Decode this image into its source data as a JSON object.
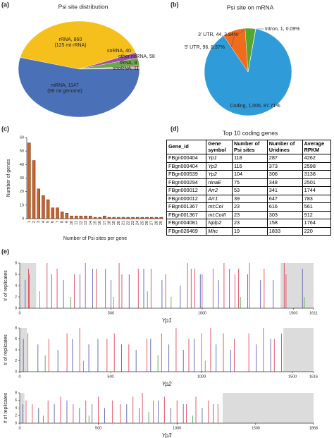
{
  "panels": [
    "(a)",
    "(b)",
    "(c)",
    "(d)",
    "(e)"
  ],
  "chart_data": [
    {
      "type": "pie",
      "title": "Psi site distribution",
      "values": [
        860,
        40,
        58,
        8,
        11,
        1147
      ],
      "value_labels": [
        "rRNA, 860",
        "snRNA, 40",
        "other ncRNA, 58",
        "tRNA, 8",
        "snoRNA, 11",
        "mRNA, 1147"
      ],
      "annotations": [
        "(125 mt rRNA)",
        "(99 mt genome)"
      ],
      "colors": [
        "#f6c01c",
        "#9b4fa6",
        "#6aa84f",
        "#d9534f",
        "#a6a6a6",
        "#4a70b7"
      ]
    },
    {
      "type": "pie",
      "title": "Psi site on mRNA",
      "values": [
        1006,
        96,
        44,
        1
      ],
      "value_labels": [
        "Coding, 1,006, 87.71%",
        "5' UTR, 96, 8.37%",
        "3' UTR, 44, 3.84%",
        "Intron, 1, 0.09%"
      ],
      "colors": [
        "#2f9bd8",
        "#f26a1b",
        "#55a630",
        "#999999"
      ]
    },
    {
      "type": "bar",
      "xlabel": "Number of Psi sites per gene",
      "ylabel": "Number of genes",
      "categories": [
        "1",
        "2",
        "3",
        "4",
        "5",
        "6",
        "7",
        "8",
        "9",
        "10",
        "11",
        "12",
        "13",
        "14",
        "15",
        "16",
        "17",
        "18",
        "19",
        "20",
        "21",
        "22",
        "23",
        "24",
        "25",
        "26",
        "27",
        "28",
        "29"
      ],
      "values": [
        56,
        43,
        22,
        17,
        14,
        8,
        8,
        5,
        4,
        2,
        2,
        2,
        2,
        2,
        1,
        1,
        2,
        1,
        1,
        1,
        1,
        1,
        1,
        1,
        1,
        1,
        1,
        1,
        1
      ],
      "color": "#c8642c",
      "ylim": [
        0,
        60
      ],
      "yticks": [
        0,
        10,
        20,
        30,
        40,
        50,
        60
      ]
    },
    {
      "type": "spike",
      "xlabel": "Yp1",
      "ylabel": "# of replicates",
      "xlim": [
        0,
        1611
      ],
      "xticks": [
        0,
        500,
        1000,
        1500,
        1611
      ],
      "ylim": [
        0,
        8
      ],
      "yticks": [
        0,
        2,
        4,
        6,
        8
      ],
      "shaded": [
        [
          0,
          90
        ],
        [
          1430,
          1611
        ]
      ],
      "series": [
        {
          "color": "#e0475a",
          "x": [
            48,
            52,
            150,
            205,
            300,
            360,
            420,
            470,
            545,
            560,
            650,
            720,
            800,
            920,
            940,
            960,
            1000,
            1060,
            1120,
            1180,
            1200,
            1260,
            1340,
            1450,
            1460
          ],
          "values": [
            7,
            6,
            8,
            7,
            6,
            8,
            7,
            7,
            8,
            6,
            7,
            7,
            6,
            8,
            7,
            7,
            6,
            7,
            8,
            6,
            7,
            8,
            7,
            8,
            6
          ]
        },
        {
          "color": "#5a5fb8",
          "x": [
            30,
            175,
            240,
            330,
            400,
            500,
            600,
            680,
            780,
            880,
            990,
            1090,
            1150,
            1250,
            1320,
            1390,
            1550
          ],
          "values": [
            5,
            6,
            5,
            6,
            7,
            5,
            6,
            7,
            5,
            4,
            6,
            5,
            7,
            6,
            5,
            5,
            7
          ]
        },
        {
          "color": "#4caf50",
          "x": [
            110,
            280,
            515,
            700,
            830,
            1210,
            1560
          ],
          "values": [
            3,
            2,
            2,
            3,
            2,
            2,
            2
          ]
        }
      ]
    },
    {
      "type": "spike",
      "xlabel": "Yp2",
      "ylabel": "# of replicates",
      "xlim": [
        0,
        1616
      ],
      "xticks": [
        0,
        500,
        1000,
        1500,
        1616
      ],
      "ylim": [
        0,
        8
      ],
      "yticks": [
        0,
        2,
        4,
        6,
        8
      ],
      "shaded": [
        [
          0,
          40
        ],
        [
          1450,
          1616
        ]
      ],
      "series": [
        {
          "color": "#e0475a",
          "x": [
            45,
            160,
            260,
            330,
            480,
            520,
            600,
            700,
            780,
            860,
            930,
            1000,
            1050,
            1120,
            1180,
            1260,
            1340,
            1400,
            1440
          ],
          "values": [
            7,
            6,
            7,
            8,
            6,
            7,
            5,
            6,
            7,
            8,
            6,
            7,
            8,
            7,
            6,
            7,
            8,
            6,
            7
          ]
        },
        {
          "color": "#5a5fb8",
          "x": [
            20,
            100,
            210,
            290,
            380,
            430,
            560,
            640,
            720,
            820,
            900,
            960,
            1080,
            1160,
            1300,
            1380
          ],
          "values": [
            6,
            5,
            4,
            6,
            5,
            6,
            5,
            4,
            6,
            5,
            4,
            6,
            5,
            4,
            5,
            6
          ]
        },
        {
          "color": "#4caf50",
          "x": [
            140,
            350,
            760,
            1020
          ],
          "values": [
            3,
            2,
            3,
            2
          ]
        }
      ]
    },
    {
      "type": "spike",
      "xlabel": "Yp3",
      "ylabel": "# of replicates",
      "xlim": [
        0,
        1868
      ],
      "xticks": [
        0,
        500,
        1000,
        1500,
        1868
      ],
      "ylim": [
        0,
        8
      ],
      "yticks": [
        0,
        2,
        4,
        6,
        8
      ],
      "shaded": [
        [
          0,
          30
        ],
        [
          1290,
          1868
        ]
      ],
      "series": [
        {
          "color": "#e0475a",
          "x": [
            40,
            80,
            180,
            260,
            340,
            420,
            500,
            590,
            640,
            720,
            780,
            850,
            920,
            1000,
            1060,
            1120,
            1200,
            1260
          ],
          "values": [
            6,
            5,
            6,
            7,
            5,
            6,
            7,
            6,
            5,
            7,
            8,
            6,
            7,
            6,
            5,
            7,
            6,
            5
          ]
        },
        {
          "color": "#5a5fb8",
          "x": [
            20,
            120,
            220,
            300,
            380,
            460,
            540,
            680,
            760,
            880,
            960,
            1040,
            1160,
            1230
          ],
          "values": [
            5,
            4,
            5,
            6,
            4,
            5,
            4,
            5,
            4,
            6,
            4,
            5,
            4,
            5
          ]
        },
        {
          "color": "#4caf50",
          "x": [
            150,
            440,
            820,
            1100
          ],
          "values": [
            2,
            2,
            3,
            2
          ]
        }
      ]
    }
  ],
  "table": {
    "title": "Top 10 coding genes",
    "header": [
      "Gene_id",
      "Gene\nsymbol",
      "Number of\nPsi sites",
      "Number of\nUridines",
      "Average\nRPKM"
    ],
    "rows": [
      [
        "FBgn000404",
        "Yp1",
        "118",
        "287",
        "4262"
      ],
      [
        "FBgn000404",
        "Yp3",
        "116",
        "373",
        "2598"
      ],
      [
        "FBgn000539",
        "Yp2",
        "104",
        "306",
        "3138"
      ],
      [
        "FBgn000294",
        "ninaE",
        "75",
        "348",
        "2501"
      ],
      [
        "FBgn000012",
        "Arr2",
        "53",
        "341",
        "1744"
      ],
      [
        "FBgn000012",
        "Arr1",
        "39",
        "647",
        "783"
      ],
      [
        "FBgn001367",
        "mt:CoI",
        "23",
        "616",
        "561"
      ],
      [
        "FBgn001367",
        "mt:CoIII",
        "23",
        "303",
        "912"
      ],
      [
        "FBgn004081",
        "Nplp2",
        "23",
        "158",
        "1764"
      ],
      [
        "FBgn026469",
        "Mhc",
        "19",
        "1833",
        "220"
      ]
    ]
  }
}
